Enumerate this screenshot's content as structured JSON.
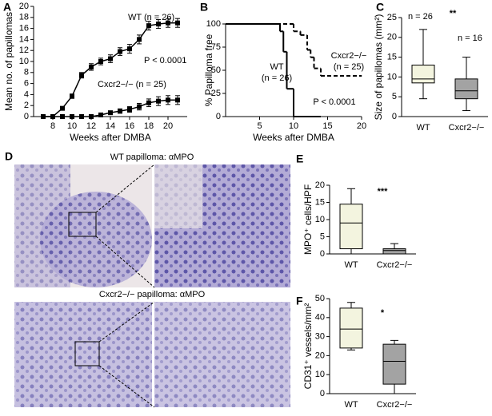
{
  "chart_data": [
    {
      "type": "line",
      "label": "A",
      "x_label": "Weeks after DMBA",
      "y_label": "Mean no. of papillomas",
      "x": [
        7,
        8,
        9,
        10,
        11,
        12,
        13,
        14,
        15,
        16,
        17,
        18,
        19,
        20,
        21
      ],
      "series": [
        {
          "name": "WT",
          "color": "#000000",
          "values": [
            0,
            0,
            1.5,
            3.7,
            7.5,
            9,
            10,
            10.5,
            11.8,
            12.3,
            14,
            16.5,
            16.8,
            17,
            17
          ],
          "errors": [
            0,
            0,
            0.3,
            0.4,
            0.5,
            0.6,
            0.6,
            0.7,
            0.7,
            0.8,
            0.8,
            0.8,
            0.8,
            0.8,
            0.8
          ]
        },
        {
          "name": "Cxcr2−/−",
          "color": "#000000",
          "values": [
            0,
            0,
            0,
            0,
            0,
            0,
            0.3,
            0.7,
            1,
            1.3,
            1.8,
            2.5,
            2.8,
            3,
            3
          ],
          "errors": [
            0,
            0,
            0,
            0,
            0,
            0,
            0.2,
            0.3,
            0.4,
            0.5,
            0.6,
            0.7,
            0.8,
            0.8,
            0.8
          ]
        }
      ],
      "annotations": [
        "WT (n = 26)",
        "P < 0.0001",
        "Cxcr2−/− (n = 25)"
      ],
      "xlim": [
        6,
        22
      ],
      "xticks": [
        8,
        10,
        12,
        14,
        16,
        18,
        20
      ],
      "ylim": [
        0,
        20
      ],
      "yticks": [
        0,
        2,
        4,
        6,
        8,
        10,
        12,
        14,
        16,
        18,
        20
      ]
    },
    {
      "type": "step",
      "label": "B",
      "x_label": "Weeks after DMBA",
      "y_label": "% Papilloma free",
      "series": [
        {
          "name": "WT",
          "color": "#000000",
          "dash": false,
          "x": [
            0,
            8,
            8.5,
            9,
            10,
            14
          ],
          "values": [
            100,
            92,
            70,
            30,
            0,
            0
          ]
        },
        {
          "name": "Cxcr2−/−",
          "color": "#000000",
          "dash": true,
          "x": [
            0,
            10,
            11,
            12,
            12.5,
            13,
            14,
            20
          ],
          "values": [
            100,
            92,
            88,
            72,
            64,
            52,
            44,
            44
          ]
        }
      ],
      "annotations": [
        "WT",
        "(n = 26)",
        "Cxcr2−/−",
        "(n = 25)",
        "P < 0.0001"
      ],
      "xlim": [
        0,
        20
      ],
      "xticks": [
        5,
        10,
        15,
        20
      ],
      "ylim": [
        0,
        100
      ],
      "yticks": [
        0,
        25,
        50,
        75,
        100
      ]
    },
    {
      "type": "box",
      "label": "C",
      "y_label": "Size of papillomas (mm²)",
      "categories": [
        "WT",
        "Cxcr2−/−"
      ],
      "colors": [
        "#f3f4df",
        "#a3a3a3"
      ],
      "boxes": [
        {
          "min": 4.5,
          "q1": 8.5,
          "median": 9.5,
          "q3": 13,
          "max": 22
        },
        {
          "min": 1.5,
          "q1": 4.5,
          "median": 6.5,
          "q3": 9.5,
          "max": 15
        }
      ],
      "annotations": [
        "n = 26",
        "**",
        "n = 16"
      ],
      "ylim": [
        0,
        25
      ],
      "yticks": [
        0,
        5,
        10,
        15,
        20,
        25
      ]
    },
    {
      "type": "box",
      "label": "E",
      "y_label": "MPO⁺ cells/HPF",
      "categories": [
        "WT",
        "Cxcr2−/−"
      ],
      "colors": [
        "#f3f4df",
        "#a3a3a3"
      ],
      "boxes": [
        {
          "min": 0,
          "q1": 1.5,
          "median": 9,
          "q3": 14.5,
          "max": 19
        },
        {
          "min": 0,
          "q1": 0,
          "median": 1,
          "q3": 1.5,
          "max": 3
        }
      ],
      "annotations": [
        "***"
      ],
      "ylim": [
        0,
        20
      ],
      "yticks": [
        0,
        5,
        10,
        15,
        20
      ]
    },
    {
      "type": "box",
      "label": "F",
      "y_label": "CD31⁺ vessels/mm²",
      "categories": [
        "WT",
        "Cxcr2−/−"
      ],
      "colors": [
        "#f3f4df",
        "#a3a3a3"
      ],
      "boxes": [
        {
          "min": 23,
          "q1": 24,
          "median": 34,
          "q3": 45,
          "max": 48
        },
        {
          "min": 0,
          "q1": 5,
          "median": 17,
          "q3": 26,
          "max": 28
        }
      ],
      "annotations": [
        "*"
      ],
      "ylim": [
        0,
        50
      ],
      "yticks": [
        0,
        10,
        20,
        30,
        40,
        50
      ]
    }
  ],
  "panel_D": {
    "label": "D",
    "captions": [
      "WT papilloma: αMPO",
      "Cxcr2−/− papilloma: αMPO"
    ]
  }
}
